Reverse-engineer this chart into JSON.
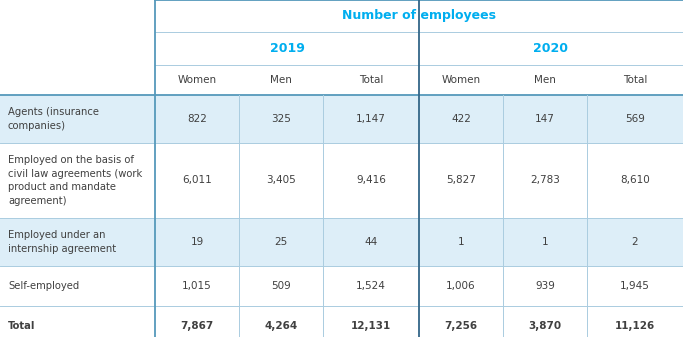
{
  "title": "Number of employees",
  "year_headers": [
    "2019",
    "2020"
  ],
  "col_headers": [
    "Women",
    "Men",
    "Total",
    "Women",
    "Men",
    "Total"
  ],
  "rows": [
    {
      "label": "Agents (insurance\ncompanies)",
      "values": [
        "822",
        "325",
        "1,147",
        "422",
        "147",
        "569"
      ],
      "shaded": true,
      "bold": false
    },
    {
      "label": "Employed on the basis of\ncivil law agreements (work\nproduct and mandate\nagreement)",
      "values": [
        "6,011",
        "3,405",
        "9,416",
        "5,827",
        "2,783",
        "8,610"
      ],
      "shaded": false,
      "bold": false
    },
    {
      "label": "Employed under an\ninternship agreement",
      "values": [
        "19",
        "25",
        "44",
        "1",
        "1",
        "2"
      ],
      "shaded": true,
      "bold": false
    },
    {
      "label": "Self-employed",
      "values": [
        "1,015",
        "509",
        "1,524",
        "1,006",
        "939",
        "1,945"
      ],
      "shaded": false,
      "bold": false
    },
    {
      "label": "Total",
      "values": [
        "7,867",
        "4,264",
        "12,131",
        "7,256",
        "3,870",
        "11,126"
      ],
      "shaded": false,
      "bold": true
    }
  ],
  "colors": {
    "header_text": "#00AEEF",
    "body_text": "#404040",
    "shaded_bg": "#DDEEF8",
    "white_bg": "#FFFFFF",
    "line_thin": "#AACCE0",
    "line_thick": "#5599BB",
    "mid_sep": "#336688"
  },
  "figsize": [
    6.83,
    3.37
  ],
  "dpi": 100
}
